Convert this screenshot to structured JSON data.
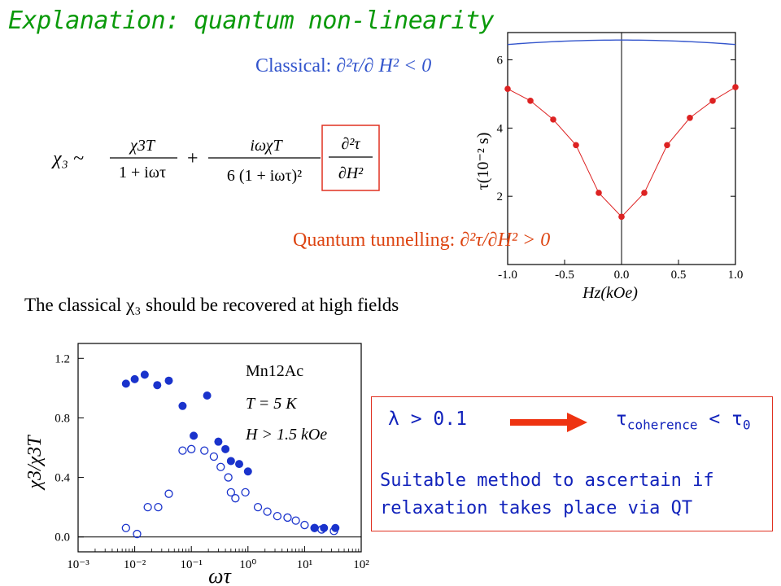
{
  "title": "Explanation: quantum non-linearity",
  "classical_condition": {
    "prefix": "Classical: ",
    "expr": "∂²τ/∂ H² < 0"
  },
  "qt_condition": {
    "prefix": "Quantum tunnelling: ",
    "expr": "∂²τ/∂H² > 0"
  },
  "formula": {
    "lhs": "χ₃ ~",
    "term1_num": "χ3T",
    "term1_den": "1 + iωτ",
    "term2_num": "iωχT",
    "term2_den": "6 (1 + iωτ)²",
    "boxed_num": "∂²τ",
    "boxed_den": "∂H²"
  },
  "classical_recovery": "The classical χ₃ should be recovered at high fields",
  "box": {
    "lambda_condition": "λ > 0.1",
    "tau_condition": {
      "tau": "τ",
      "sub1": "coherence",
      "op": " < ",
      "tau0": "τ",
      "sub2": "0"
    },
    "method_line1": "Suitable method to ascertain if",
    "method_line2": "relaxation takes place via QT",
    "accent_color": "#e03020",
    "arrow_color": "#ee3311"
  },
  "chart_data": [
    {
      "type": "scatter",
      "xlabel": "Hz(kOe)",
      "ylabel": "τ(10⁻² s)",
      "xlim": [
        -1.0,
        1.0
      ],
      "ylim": [
        0,
        6.8
      ],
      "x_ticks": [
        "-1.0",
        "-0.5",
        "0.0",
        "0.5",
        "1.0"
      ],
      "y_ticks": [
        "2",
        "4",
        "6"
      ],
      "y_tick_values": [
        2,
        4,
        6
      ],
      "x_tick_values": [
        -1.0,
        -0.5,
        0.0,
        0.5,
        1.0
      ],
      "series": [
        {
          "color": "#dd2222",
          "x": [
            -1.0,
            -0.8,
            -0.6,
            -0.4,
            -0.2,
            0.0,
            0.2,
            0.4,
            0.6,
            0.8,
            1.0
          ],
          "y": [
            5.15,
            4.8,
            4.25,
            3.5,
            2.1,
            1.4,
            2.1,
            3.5,
            4.3,
            4.8,
            5.2
          ]
        },
        {
          "color": "#3355cc",
          "x": [
            -1.0,
            -0.5,
            0.0,
            0.5,
            1.0
          ],
          "y": [
            6.45,
            6.55,
            6.58,
            6.55,
            6.45
          ]
        }
      ]
    },
    {
      "type": "scatter",
      "xlabel": "ωτ",
      "ylabel": "χ3/χ3T",
      "xscale": "log",
      "xlim": [
        0.001,
        100
      ],
      "ylim": [
        -0.1,
        1.3
      ],
      "x_ticks": [
        "10⁻³",
        "10⁻²",
        "10⁻¹",
        "10⁰",
        "10¹",
        "10²"
      ],
      "x_tick_values": [
        0.001,
        0.01,
        0.1,
        1,
        10,
        100
      ],
      "y_ticks": [
        "0.0",
        "0.4",
        "0.8",
        "1.2"
      ],
      "y_tick_values": [
        0.0,
        0.4,
        0.8,
        1.2
      ],
      "annotations": [
        "Mn12Ac",
        "T = 5 K",
        "H > 1.5 kOe"
      ],
      "series": [
        {
          "marker": "filled",
          "color": "#1a33cc",
          "x": [
            0.007,
            0.01,
            0.015,
            0.025,
            0.04,
            0.07,
            0.11,
            0.19,
            0.3,
            0.4,
            0.5,
            0.7,
            1.0,
            15,
            22,
            35
          ],
          "y": [
            1.03,
            1.06,
            1.09,
            1.02,
            1.05,
            0.88,
            0.68,
            0.95,
            0.64,
            0.59,
            0.51,
            0.49,
            0.44,
            0.06,
            0.06,
            0.06
          ]
        },
        {
          "marker": "open",
          "color": "#1a33cc",
          "x": [
            0.007,
            0.011,
            0.017,
            0.026,
            0.04,
            0.07,
            0.1,
            0.17,
            0.25,
            0.33,
            0.45,
            0.5,
            0.6,
            0.9,
            1.5,
            2.2,
            3.3,
            5,
            7,
            10,
            15,
            20,
            33
          ],
          "y": [
            0.06,
            0.02,
            0.2,
            0.2,
            0.29,
            0.58,
            0.59,
            0.58,
            0.54,
            0.47,
            0.4,
            0.3,
            0.26,
            0.3,
            0.2,
            0.17,
            0.14,
            0.13,
            0.11,
            0.08,
            0.06,
            0.05,
            0.04
          ]
        }
      ]
    }
  ]
}
